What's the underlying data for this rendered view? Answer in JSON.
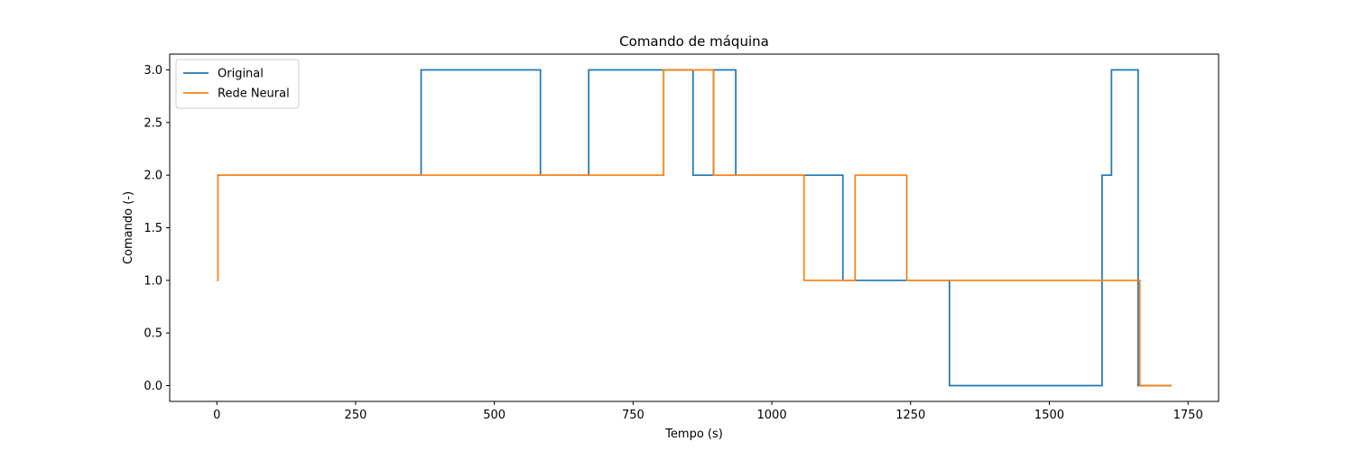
{
  "chart_data": {
    "type": "line",
    "title": "Comando de máquina",
    "xlabel": "Tempo (s)",
    "ylabel": "Comando (-)",
    "xlim": [
      -85,
      1805
    ],
    "ylim": [
      -0.15,
      3.15
    ],
    "xticks": [
      0,
      250,
      500,
      750,
      1000,
      1250,
      1500,
      1750
    ],
    "xtick_labels": [
      "0",
      "250",
      "500",
      "750",
      "1000",
      "1250",
      "1500",
      "1750"
    ],
    "yticks": [
      0.0,
      0.5,
      1.0,
      1.5,
      2.0,
      2.5,
      3.0
    ],
    "ytick_labels": [
      "0.0",
      "0.5",
      "1.0",
      "1.5",
      "2.0",
      "2.5",
      "3.0"
    ],
    "grid": false,
    "legend_position": "upper-left",
    "step": "post",
    "series": [
      {
        "name": "Original",
        "color": "#1f77b4",
        "x": [
          0,
          368,
          583,
          670,
          858,
          895,
          935,
          1125,
          1128,
          1320,
          1595,
          1612,
          1660,
          1720
        ],
        "y": [
          2,
          3,
          2,
          3,
          2,
          3,
          2,
          2,
          1,
          0,
          2,
          3,
          0,
          0
        ]
      },
      {
        "name": "Rede Neural",
        "color": "#ff7f0e",
        "x": [
          0,
          2,
          805,
          895,
          1058,
          1150,
          1243,
          1663,
          1720
        ],
        "y": [
          1,
          2,
          3,
          2,
          1,
          2,
          1,
          0,
          0
        ]
      }
    ]
  }
}
